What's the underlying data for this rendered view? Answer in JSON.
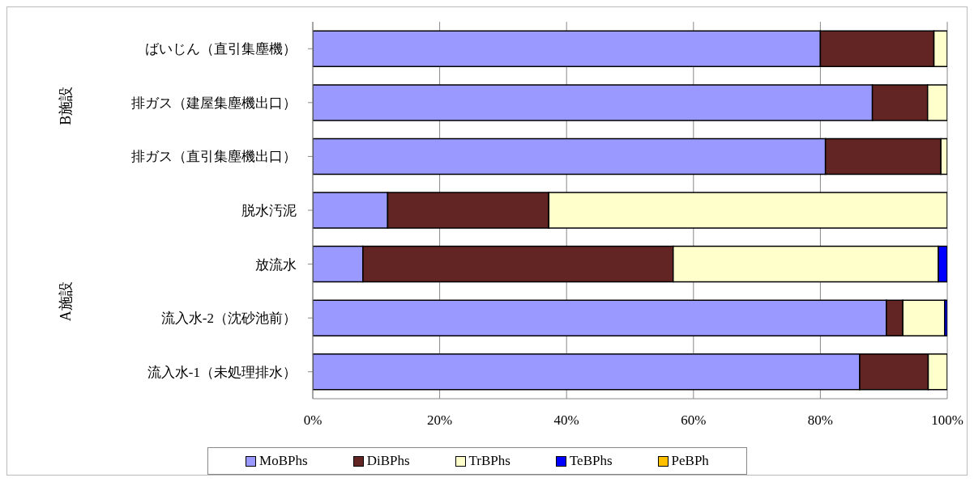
{
  "chart_data": {
    "type": "bar",
    "orientation": "horizontal",
    "stacked": true,
    "categories": [
      "ばいじん（直引集塵機）",
      "排ガス（建屋集塵機出口）",
      "排ガス（直引集塵機出口）",
      "脱水汚泥",
      "放流水",
      "流入水-2（沈砂池前）",
      "流入水-1（未処理排水）"
    ],
    "series": [
      {
        "name": "MoBPhs",
        "color": "#9999ff",
        "values": [
          80.0,
          88.2,
          80.8,
          11.8,
          7.9,
          90.4,
          86.2
        ]
      },
      {
        "name": "DiBPhs",
        "color": "#632523",
        "values": [
          17.9,
          8.7,
          18.2,
          25.4,
          48.9,
          2.6,
          10.8
        ]
      },
      {
        "name": "TrBPhs",
        "color": "#ffffcc",
        "values": [
          2.1,
          3.1,
          1.0,
          62.8,
          41.8,
          6.6,
          3.0
        ]
      },
      {
        "name": "TeBPhs",
        "color": "#0000ff",
        "values": [
          0,
          0,
          0,
          0,
          1.4,
          0.4,
          0
        ]
      },
      {
        "name": "PeBPh",
        "color": "#ffc000",
        "values": [
          0,
          0,
          0,
          0,
          0,
          0,
          0
        ]
      }
    ],
    "xlim": [
      0,
      100
    ],
    "xticks": [
      {
        "value": 0,
        "label": "0%"
      },
      {
        "value": 20,
        "label": "20%"
      },
      {
        "value": 40,
        "label": "40%"
      },
      {
        "value": 60,
        "label": "60%"
      },
      {
        "value": 80,
        "label": "80%"
      },
      {
        "value": 100,
        "label": "100%"
      }
    ],
    "annotations": [
      "B施設",
      "A施設"
    ],
    "grid": "x",
    "legend": "bottom"
  }
}
